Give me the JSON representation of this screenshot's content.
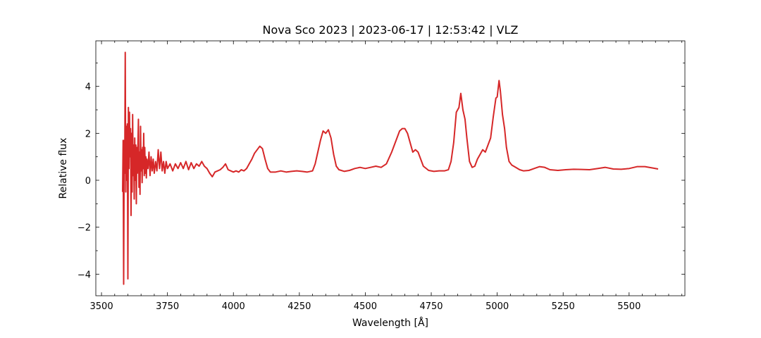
{
  "chart_data": {
    "type": "line",
    "title": "Nova Sco 2023 | 2023-06-17 | 12:53:42 | VLZ",
    "xlabel": "Wavelength [Å]",
    "ylabel": "Relative flux",
    "x": [
      3580,
      3582,
      3584,
      3586,
      3588,
      3590,
      3592,
      3594,
      3596,
      3598,
      3600,
      3602,
      3604,
      3606,
      3608,
      3610,
      3612,
      3614,
      3616,
      3618,
      3620,
      3622,
      3624,
      3626,
      3628,
      3630,
      3632,
      3634,
      3636,
      3640,
      3642,
      3644,
      3646,
      3648,
      3650,
      3652,
      3654,
      3656,
      3658,
      3660,
      3662,
      3664,
      3666,
      3668,
      3670,
      3672,
      3676,
      3680,
      3684,
      3688,
      3692,
      3696,
      3700,
      3705,
      3710,
      3715,
      3720,
      3725,
      3730,
      3735,
      3740,
      3745,
      3750,
      3760,
      3770,
      3780,
      3790,
      3800,
      3810,
      3820,
      3830,
      3840,
      3850,
      3860,
      3870,
      3880,
      3890,
      3900,
      3910,
      3920,
      3930,
      3940,
      3950,
      3960,
      3970,
      3980,
      3990,
      4000,
      4010,
      4020,
      4030,
      4040,
      4050,
      4060,
      4070,
      4080,
      4090,
      4100,
      4110,
      4120,
      4130,
      4140,
      4160,
      4180,
      4200,
      4220,
      4240,
      4260,
      4280,
      4300,
      4310,
      4320,
      4330,
      4340,
      4350,
      4360,
      4370,
      4380,
      4390,
      4400,
      4420,
      4440,
      4460,
      4480,
      4500,
      4520,
      4540,
      4560,
      4580,
      4600,
      4620,
      4630,
      4640,
      4650,
      4660,
      4670,
      4680,
      4690,
      4700,
      4710,
      4720,
      4740,
      4760,
      4780,
      4800,
      4815,
      4825,
      4835,
      4845,
      4855,
      4862,
      4870,
      4878,
      4885,
      4895,
      4905,
      4915,
      4925,
      4935,
      4945,
      4955,
      4965,
      4975,
      4985,
      4995,
      5000,
      5007,
      5012,
      5020,
      5028,
      5035,
      5045,
      5055,
      5070,
      5085,
      5100,
      5120,
      5140,
      5160,
      5180,
      5200,
      5230,
      5260,
      5290,
      5320,
      5350,
      5380,
      5410,
      5440,
      5470,
      5500,
      5530,
      5560,
      5590,
      5610
    ],
    "series": [
      {
        "name": "Nova Sco 2023",
        "color": "#d62728",
        "values": [
          -0.5,
          1.7,
          -4.43,
          1.7,
          0.3,
          5.45,
          -0.5,
          2.3,
          0.0,
          2.4,
          -4.2,
          3.1,
          0.5,
          2.9,
          1.0,
          2.2,
          -1.5,
          2.0,
          -0.5,
          2.8,
          0.2,
          1.5,
          -0.8,
          1.8,
          0.0,
          1.5,
          -1.0,
          1.4,
          0.3,
          2.6,
          -0.3,
          1.2,
          -0.6,
          2.3,
          0.4,
          1.3,
          -0.1,
          1.4,
          0.5,
          2.0,
          0.2,
          1.4,
          0.3,
          1.0,
          0.1,
          0.9,
          0.5,
          1.2,
          0.2,
          1.0,
          0.4,
          0.9,
          0.3,
          0.8,
          0.4,
          1.3,
          0.5,
          1.2,
          0.4,
          0.8,
          0.3,
          0.8,
          0.5,
          0.7,
          0.4,
          0.7,
          0.5,
          0.75,
          0.5,
          0.8,
          0.45,
          0.75,
          0.5,
          0.7,
          0.6,
          0.8,
          0.6,
          0.5,
          0.3,
          0.15,
          0.35,
          0.4,
          0.45,
          0.55,
          0.7,
          0.45,
          0.4,
          0.35,
          0.4,
          0.35,
          0.45,
          0.4,
          0.5,
          0.7,
          0.9,
          1.15,
          1.3,
          1.45,
          1.35,
          0.9,
          0.5,
          0.35,
          0.35,
          0.4,
          0.35,
          0.38,
          0.4,
          0.38,
          0.35,
          0.4,
          0.7,
          1.2,
          1.7,
          2.1,
          2.0,
          2.15,
          1.8,
          1.1,
          0.6,
          0.45,
          0.38,
          0.42,
          0.5,
          0.55,
          0.5,
          0.55,
          0.6,
          0.55,
          0.7,
          1.2,
          1.8,
          2.1,
          2.2,
          2.2,
          2.0,
          1.6,
          1.2,
          1.3,
          1.2,
          0.9,
          0.6,
          0.42,
          0.38,
          0.4,
          0.4,
          0.45,
          0.8,
          1.6,
          2.9,
          3.1,
          3.7,
          3.0,
          2.6,
          1.8,
          0.8,
          0.55,
          0.6,
          0.9,
          1.1,
          1.3,
          1.2,
          1.5,
          1.8,
          2.7,
          3.5,
          3.55,
          4.25,
          3.8,
          2.8,
          2.2,
          1.4,
          0.8,
          0.65,
          0.55,
          0.45,
          0.4,
          0.42,
          0.5,
          0.58,
          0.55,
          0.45,
          0.42,
          0.45,
          0.47,
          0.46,
          0.45,
          0.5,
          0.55,
          0.48,
          0.47,
          0.5,
          0.58,
          0.58,
          0.52,
          0.48
        ]
      }
    ],
    "xlim": [
      3478.5,
      5711.5
    ],
    "ylim": [
      -4.92,
      5.94
    ],
    "xticks": [
      3500,
      3750,
      4000,
      4250,
      4500,
      4750,
      5000,
      5250,
      5500
    ],
    "yticks": [
      {
        "value": -4,
        "label": "−4"
      },
      {
        "value": -2,
        "label": "−2"
      },
      0,
      2,
      4
    ],
    "xminorticks": [
      3550,
      3600,
      3650,
      3700,
      3800,
      3850,
      3900,
      3950,
      4050,
      4100,
      4150,
      4200,
      4300,
      4350,
      4400,
      4450,
      4550,
      4600,
      4650,
      4700,
      4800,
      4850,
      4900,
      4950,
      5050,
      5100,
      5150,
      5200,
      5300,
      5350,
      5400,
      5450,
      5550,
      5600,
      5650,
      5700
    ],
    "yminorticks": [
      -3,
      -1,
      1,
      3,
      5
    ],
    "grid": false
  }
}
